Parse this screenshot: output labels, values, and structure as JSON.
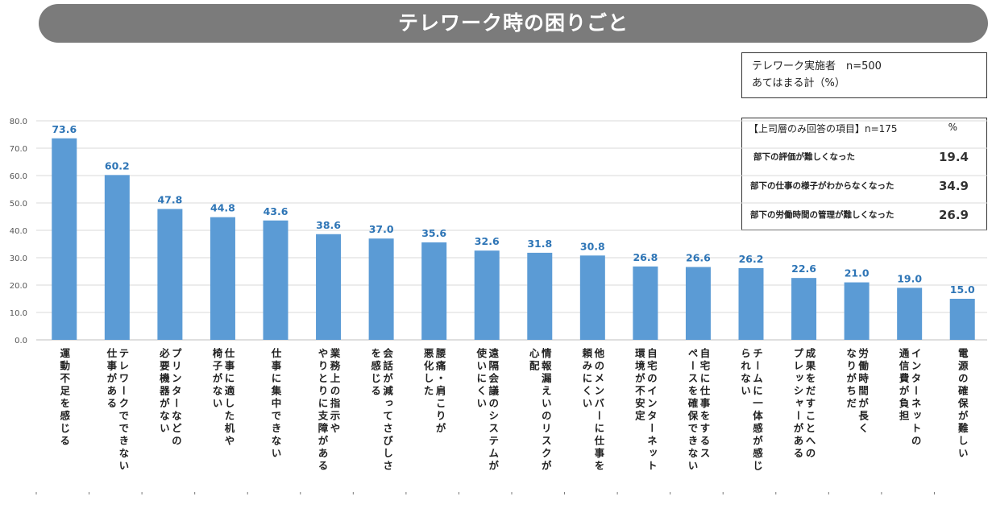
{
  "title": "テレワーク時の困りごと",
  "info_box": {
    "line1": "テレワーク実施者　n=500",
    "line2": "あてはまる計（%）"
  },
  "manager_box": {
    "header": "【上司層のみ回答の項目】n=175",
    "unit": "%",
    "rows": [
      {
        "label": "部下の評価が難しくなった",
        "value": "19.4"
      },
      {
        "label": "部下の仕事の様子がわからなくなった",
        "value": "34.9"
      },
      {
        "label": "部下の労働時間の管理が難しくなった",
        "value": "26.9"
      }
    ]
  },
  "chart_data": {
    "type": "bar",
    "ylim": [
      0,
      80
    ],
    "yticks": [
      "0.0",
      "10.0",
      "20.0",
      "30.0",
      "40.0",
      "50.0",
      "60.0",
      "70.0",
      "80.0"
    ],
    "bar_color": "#5b9bd5",
    "label_color": "#2e75b6",
    "categories": [
      "運動不足を感じる",
      "テレワークでできない仕事がある",
      "プリンターなどの必要機器がない",
      "仕事に適した机や椅子がない",
      "仕事に集中できない",
      "業務上の指示ややりとりに支障がある",
      "会話が減ってさびしさを感じる",
      "腰痛・肩こりが悪化した",
      "遠隔会議のシステムが使いにくい",
      "情報漏えいのリスクが心配",
      "他のメンバーに仕事を頼みにくい",
      "自宅のインターネット環境が不安定",
      "自宅に仕事をするスペースを確保できない",
      "チームに一体感が感じられない",
      "成果をだすことへのプレッシャーがある",
      "労働時間が長くなりがちだ",
      "インターネットの通信費が負担",
      "電源の確保が難しい"
    ],
    "label_lines": [
      [
        "運動不足を感じる"
      ],
      [
        "テレワークでできない",
        "仕事がある"
      ],
      [
        "プリンターなどの",
        "必要機器がない"
      ],
      [
        "仕事に適した机や",
        "椅子がない"
      ],
      [
        "仕事に集中できない"
      ],
      [
        "業務上の指示や",
        "やりとりに支障がある"
      ],
      [
        "会話が減ってさびしさ",
        "を感じる"
      ],
      [
        "腰痛・肩こりが",
        "悪化した"
      ],
      [
        "遠隔会議のシステムが",
        "使いにくい"
      ],
      [
        "情報漏えいのリスクが",
        "心配"
      ],
      [
        "他のメンバーに仕事を",
        "頼みにくい"
      ],
      [
        "自宅のインターネット",
        "環境が不安定"
      ],
      [
        "自宅に仕事をするス",
        "ペースを確保できない"
      ],
      [
        "チームに一体感が感じ",
        "られない"
      ],
      [
        "成果をだすことへの",
        "プレッシャーがある"
      ],
      [
        "労働時間が長く",
        "なりがちだ"
      ],
      [
        "インターネットの",
        "通信費が負担"
      ],
      [
        "電源の確保が難しい"
      ]
    ],
    "values": [
      73.6,
      60.2,
      47.8,
      44.8,
      43.6,
      38.6,
      37.0,
      35.6,
      32.6,
      31.8,
      30.8,
      26.8,
      26.6,
      26.2,
      22.6,
      21.0,
      19.0,
      15.0
    ],
    "value_labels": [
      "73.6",
      "60.2",
      "47.8",
      "44.8",
      "43.6",
      "38.6",
      "37.0",
      "35.6",
      "32.6",
      "31.8",
      "30.8",
      "26.8",
      "26.6",
      "26.2",
      "22.6",
      "21.0",
      "19.0",
      "15.0"
    ]
  }
}
